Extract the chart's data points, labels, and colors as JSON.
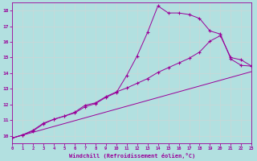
{
  "background_color": "#b2e0e0",
  "grid_color": "#c8d8d8",
  "line_color": "#990099",
  "xlabel": "Windchill (Refroidissement éolien,°C)",
  "xlim": [
    0,
    23
  ],
  "ylim": [
    9.5,
    18.5
  ],
  "xticks": [
    0,
    1,
    2,
    3,
    4,
    5,
    6,
    7,
    8,
    9,
    10,
    11,
    12,
    13,
    14,
    15,
    16,
    17,
    18,
    19,
    20,
    21,
    22,
    23
  ],
  "yticks": [
    10,
    11,
    12,
    13,
    14,
    15,
    16,
    17,
    18
  ],
  "line1_x": [
    0,
    1,
    2,
    3,
    4,
    5,
    6,
    7,
    8,
    9,
    10,
    11,
    12,
    13,
    14,
    15,
    16,
    17,
    18,
    19,
    20,
    21,
    22,
    23
  ],
  "line1_y": [
    9.85,
    10.05,
    10.35,
    10.8,
    11.05,
    11.25,
    11.45,
    11.85,
    12.05,
    12.45,
    12.75,
    13.85,
    15.1,
    16.6,
    18.3,
    17.85,
    17.85,
    17.75,
    17.5,
    16.7,
    16.5,
    14.9,
    14.5,
    14.45
  ],
  "line2_x": [
    0,
    1,
    2,
    3,
    4,
    5,
    6,
    7,
    8,
    9,
    10,
    11,
    12,
    13,
    14,
    15,
    16,
    17,
    18,
    19,
    20,
    21,
    22,
    23
  ],
  "line2_y": [
    9.85,
    10.05,
    10.3,
    10.75,
    11.05,
    11.25,
    11.5,
    11.95,
    12.1,
    12.5,
    12.8,
    13.05,
    13.35,
    13.65,
    14.05,
    14.35,
    14.65,
    14.95,
    15.35,
    16.05,
    16.4,
    15.0,
    14.85,
    14.45
  ],
  "line3_x": [
    0,
    23
  ],
  "line3_y": [
    9.85,
    14.1
  ]
}
